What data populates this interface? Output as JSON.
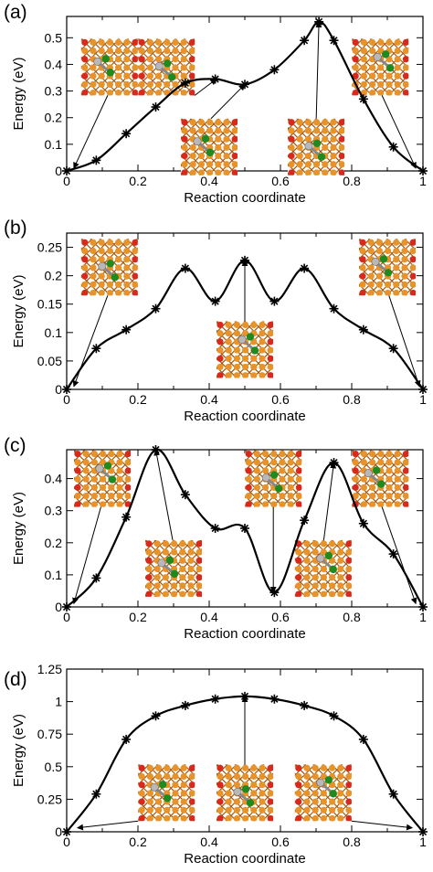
{
  "chart_data": [
    {
      "panel_label": "(a)",
      "type": "line",
      "xlabel": "Reaction coordinate",
      "ylabel": "Energy (eV)",
      "xlim": [
        0,
        1
      ],
      "ylim": [
        0,
        0.58
      ],
      "x_ticks": [
        0,
        0.2,
        0.4,
        0.6,
        0.8,
        1
      ],
      "x_tick_labels": [
        "0",
        "0.2",
        "0.4",
        "0.6",
        "0.8",
        "1"
      ],
      "y_ticks": [
        0,
        0.1,
        0.2,
        0.3,
        0.4,
        0.5
      ],
      "y_tick_labels": [
        "0",
        "0.1",
        "0.2",
        "0.3",
        "0.4",
        "0.5"
      ],
      "grid": false,
      "series": [
        {
          "marker": "asterisk",
          "line_color": "#000000",
          "x": [
            0,
            0.083,
            0.167,
            0.25,
            0.333,
            0.417,
            0.5,
            0.583,
            0.667,
            0.708,
            0.75,
            0.833,
            0.917,
            1
          ],
          "y": [
            0,
            0.04,
            0.14,
            0.24,
            0.33,
            0.345,
            0.325,
            0.38,
            0.49,
            0.56,
            0.49,
            0.27,
            0.09,
            0
          ]
        }
      ],
      "insets": [
        {
          "anchor": [
            0.12,
            0.39
          ],
          "pointer": "arrow",
          "target": [
            0.02,
            0.01
          ],
          "atoms": "Si-Si dimer"
        },
        {
          "anchor": [
            0.28,
            0.39
          ],
          "pointer": "arrow",
          "target": [
            0.42,
            0.345
          ],
          "atoms": "Si-Si dimer"
        },
        {
          "anchor": [
            0.88,
            0.39
          ],
          "pointer": "arrow",
          "target": [
            0.98,
            0.01
          ],
          "atoms": "Si-Si dimer"
        },
        {
          "anchor": [
            0.4,
            0.09
          ],
          "pointer": "arrow",
          "target": [
            0.5,
            0.325
          ],
          "atoms": "Si-Si dimer"
        },
        {
          "anchor": [
            0.7,
            0.09
          ],
          "pointer": "arrow",
          "target": [
            0.708,
            0.56
          ],
          "atoms": "Si-Si dimer"
        }
      ]
    },
    {
      "panel_label": "(b)",
      "type": "line",
      "xlabel": "Reaction coordinate",
      "ylabel": "Energy (eV)",
      "xlim": [
        0,
        1
      ],
      "ylim": [
        0,
        0.275
      ],
      "x_ticks": [
        0,
        0.2,
        0.4,
        0.6,
        0.8,
        1
      ],
      "x_tick_labels": [
        "0",
        "0.2",
        "0.4",
        "0.6",
        "0.8",
        "1"
      ],
      "y_ticks": [
        0,
        0.05,
        0.1,
        0.15,
        0.2,
        0.25
      ],
      "y_tick_labels": [
        "0",
        "0.05",
        "0.1",
        "0.15",
        "0.2",
        "0.25"
      ],
      "grid": false,
      "series": [
        {
          "marker": "asterisk",
          "line_color": "#000000",
          "x": [
            0,
            0.083,
            0.167,
            0.25,
            0.333,
            0.417,
            0.5,
            0.583,
            0.667,
            0.75,
            0.833,
            0.917,
            1
          ],
          "y": [
            0,
            0.072,
            0.105,
            0.142,
            0.213,
            0.155,
            0.227,
            0.155,
            0.213,
            0.142,
            0.105,
            0.072,
            0
          ]
        }
      ],
      "insets": [
        {
          "anchor": [
            0.12,
            0.215
          ],
          "pointer": "arrow",
          "target": [
            0.02,
            0.005
          ],
          "atoms": "Si-Si dimer"
        },
        {
          "anchor": [
            0.5,
            0.07
          ],
          "pointer": "arrow",
          "target": [
            0.5,
            0.227
          ],
          "atoms": "Si-Si dimer"
        },
        {
          "anchor": [
            0.9,
            0.215
          ],
          "pointer": "arrow",
          "target": [
            0.99,
            0.005
          ],
          "atoms": "Si-Si dimer"
        }
      ]
    },
    {
      "panel_label": "(c)",
      "type": "line",
      "xlabel": "Reaction coordinate",
      "ylabel": "Energy (eV)",
      "xlim": [
        0,
        1
      ],
      "ylim": [
        0,
        0.49
      ],
      "x_ticks": [
        0,
        0.2,
        0.4,
        0.6,
        0.8,
        1
      ],
      "x_tick_labels": [
        "0",
        "0.2",
        "0.4",
        "0.6",
        "0.8",
        "1"
      ],
      "y_ticks": [
        0,
        0.1,
        0.2,
        0.3,
        0.4
      ],
      "y_tick_labels": [
        "0",
        "0.1",
        "0.2",
        "0.3",
        "0.4"
      ],
      "grid": false,
      "series": [
        {
          "marker": "asterisk",
          "line_color": "#000000",
          "x": [
            0,
            0.083,
            0.167,
            0.25,
            0.333,
            0.417,
            0.5,
            0.583,
            0.667,
            0.75,
            0.833,
            0.917,
            1
          ],
          "y": [
            0,
            0.09,
            0.28,
            0.49,
            0.35,
            0.245,
            0.245,
            0.045,
            0.27,
            0.45,
            0.26,
            0.165,
            0
          ]
        }
      ],
      "insets": [
        {
          "anchor": [
            0.1,
            0.4
          ],
          "pointer": "arrow",
          "target": [
            0.02,
            0.01
          ],
          "atoms": "Si-Si dimer"
        },
        {
          "anchor": [
            0.3,
            0.12
          ],
          "pointer": "arrow",
          "target": [
            0.25,
            0.49
          ],
          "atoms": "Si-Si dimer"
        },
        {
          "anchor": [
            0.58,
            0.4
          ],
          "pointer": "arrow",
          "target": [
            0.58,
            0.045
          ],
          "atoms": "Si-Si dimer"
        },
        {
          "anchor": [
            0.72,
            0.12
          ],
          "pointer": "arrow",
          "target": [
            0.75,
            0.45
          ],
          "atoms": "Si-Si dimer"
        },
        {
          "anchor": [
            0.88,
            0.4
          ],
          "pointer": "arrow",
          "target": [
            0.98,
            0.01
          ],
          "atoms": "Si-Si dimer"
        }
      ]
    },
    {
      "panel_label": "(d)",
      "type": "line",
      "xlabel": "Reaction coordinate",
      "ylabel": "Energy (eV)",
      "xlim": [
        0,
        1
      ],
      "ylim": [
        0,
        1.25
      ],
      "x_ticks": [
        0,
        0.2,
        0.4,
        0.6,
        0.8,
        1
      ],
      "x_tick_labels": [
        "0",
        "0.2",
        "0.4",
        "0.6",
        "0.8",
        "1"
      ],
      "y_ticks": [
        0,
        0.25,
        0.5,
        0.75,
        1,
        1.25
      ],
      "y_tick_labels": [
        "0",
        "0.25",
        "0.5",
        "0.75",
        "1",
        "1.25"
      ],
      "grid": false,
      "series": [
        {
          "marker": "asterisk",
          "line_color": "#000000",
          "x": [
            0,
            0.083,
            0.167,
            0.25,
            0.333,
            0.417,
            0.5,
            0.583,
            0.667,
            0.75,
            0.833,
            0.917,
            1
          ],
          "y": [
            0,
            0.29,
            0.71,
            0.89,
            0.97,
            1.02,
            1.04,
            1.02,
            0.97,
            0.89,
            0.71,
            0.29,
            0
          ]
        }
      ],
      "insets": [
        {
          "anchor": [
            0.28,
            0.3
          ],
          "pointer": "arrow",
          "target": [
            0.03,
            0.03
          ],
          "atoms": "Si-Si dimer"
        },
        {
          "anchor": [
            0.5,
            0.3
          ],
          "pointer": "arrow",
          "target": [
            0.5,
            1.04
          ],
          "atoms": "Si-Si dimer"
        },
        {
          "anchor": [
            0.72,
            0.3
          ],
          "pointer": "arrow",
          "target": [
            0.97,
            0.03
          ],
          "atoms": "Si-Si dimer"
        }
      ]
    }
  ],
  "colors": {
    "orange_atom": "#e8922a",
    "red_atom": "#d9291c",
    "green_atom": "#1f8a1f",
    "grey_atom": "#b8b8b8",
    "bond": "#a05a18"
  }
}
